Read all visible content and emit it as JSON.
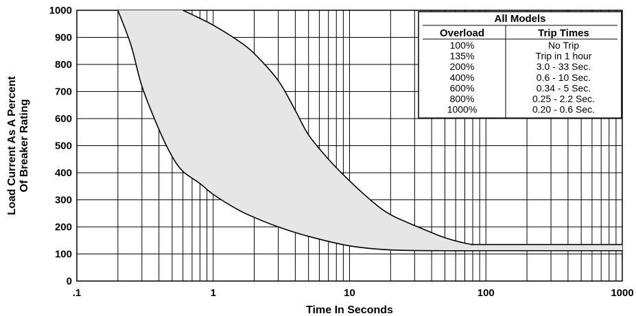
{
  "chart_data": {
    "type": "area",
    "xlabel": "Time In Seconds",
    "ylabel_lines": [
      "Load Current As A Percent",
      "Of Breaker Rating"
    ],
    "x_scale": "log",
    "xlim": [
      0.1,
      1000
    ],
    "ylim": [
      0,
      1000
    ],
    "x_ticks": [
      {
        "value": 0.1,
        "label": ".1"
      },
      {
        "value": 1,
        "label": "1"
      },
      {
        "value": 10,
        "label": "10"
      },
      {
        "value": 100,
        "label": "100"
      },
      {
        "value": 1000,
        "label": "1000"
      }
    ],
    "y_ticks": [
      0,
      100,
      200,
      300,
      400,
      500,
      600,
      700,
      800,
      900,
      1000
    ],
    "grid": true,
    "fill_color": "#e6e6e6",
    "series": [
      {
        "points": [
          [
            0.2,
            1000
          ],
          [
            0.25,
            870
          ],
          [
            0.3,
            720
          ],
          [
            0.4,
            560
          ],
          [
            0.5,
            460
          ],
          [
            0.6,
            405
          ],
          [
            0.8,
            360
          ],
          [
            1,
            320
          ],
          [
            1.5,
            265
          ],
          [
            2,
            235
          ],
          [
            3,
            200
          ],
          [
            5,
            165
          ],
          [
            10,
            130
          ],
          [
            20,
            115
          ],
          [
            50,
            112
          ],
          [
            100,
            112
          ],
          [
            1000,
            112
          ]
        ]
      },
      {
        "points": [
          [
            0.6,
            1000
          ],
          [
            0.8,
            970
          ],
          [
            1,
            945
          ],
          [
            1.5,
            890
          ],
          [
            2,
            840
          ],
          [
            3,
            740
          ],
          [
            4,
            630
          ],
          [
            5,
            540
          ],
          [
            7,
            450
          ],
          [
            10,
            370
          ],
          [
            15,
            290
          ],
          [
            20,
            245
          ],
          [
            30,
            205
          ],
          [
            50,
            160
          ],
          [
            70,
            140
          ],
          [
            80,
            135
          ],
          [
            100,
            135
          ],
          [
            1000,
            135
          ]
        ]
      }
    ],
    "table": {
      "title": "All Models",
      "headers": [
        "Overload",
        "Trip Times"
      ],
      "rows": [
        [
          "100%",
          "No Trip"
        ],
        [
          "135%",
          "Trip in 1 hour"
        ],
        [
          "200%",
          "3.0 - 33 Sec."
        ],
        [
          "400%",
          "0.6 - 10 Sec."
        ],
        [
          "600%",
          "0.34 - 5 Sec."
        ],
        [
          "800%",
          "0.25 - 2.2 Sec."
        ],
        [
          "1000%",
          "0.20 - 0.6 Sec."
        ]
      ]
    }
  }
}
